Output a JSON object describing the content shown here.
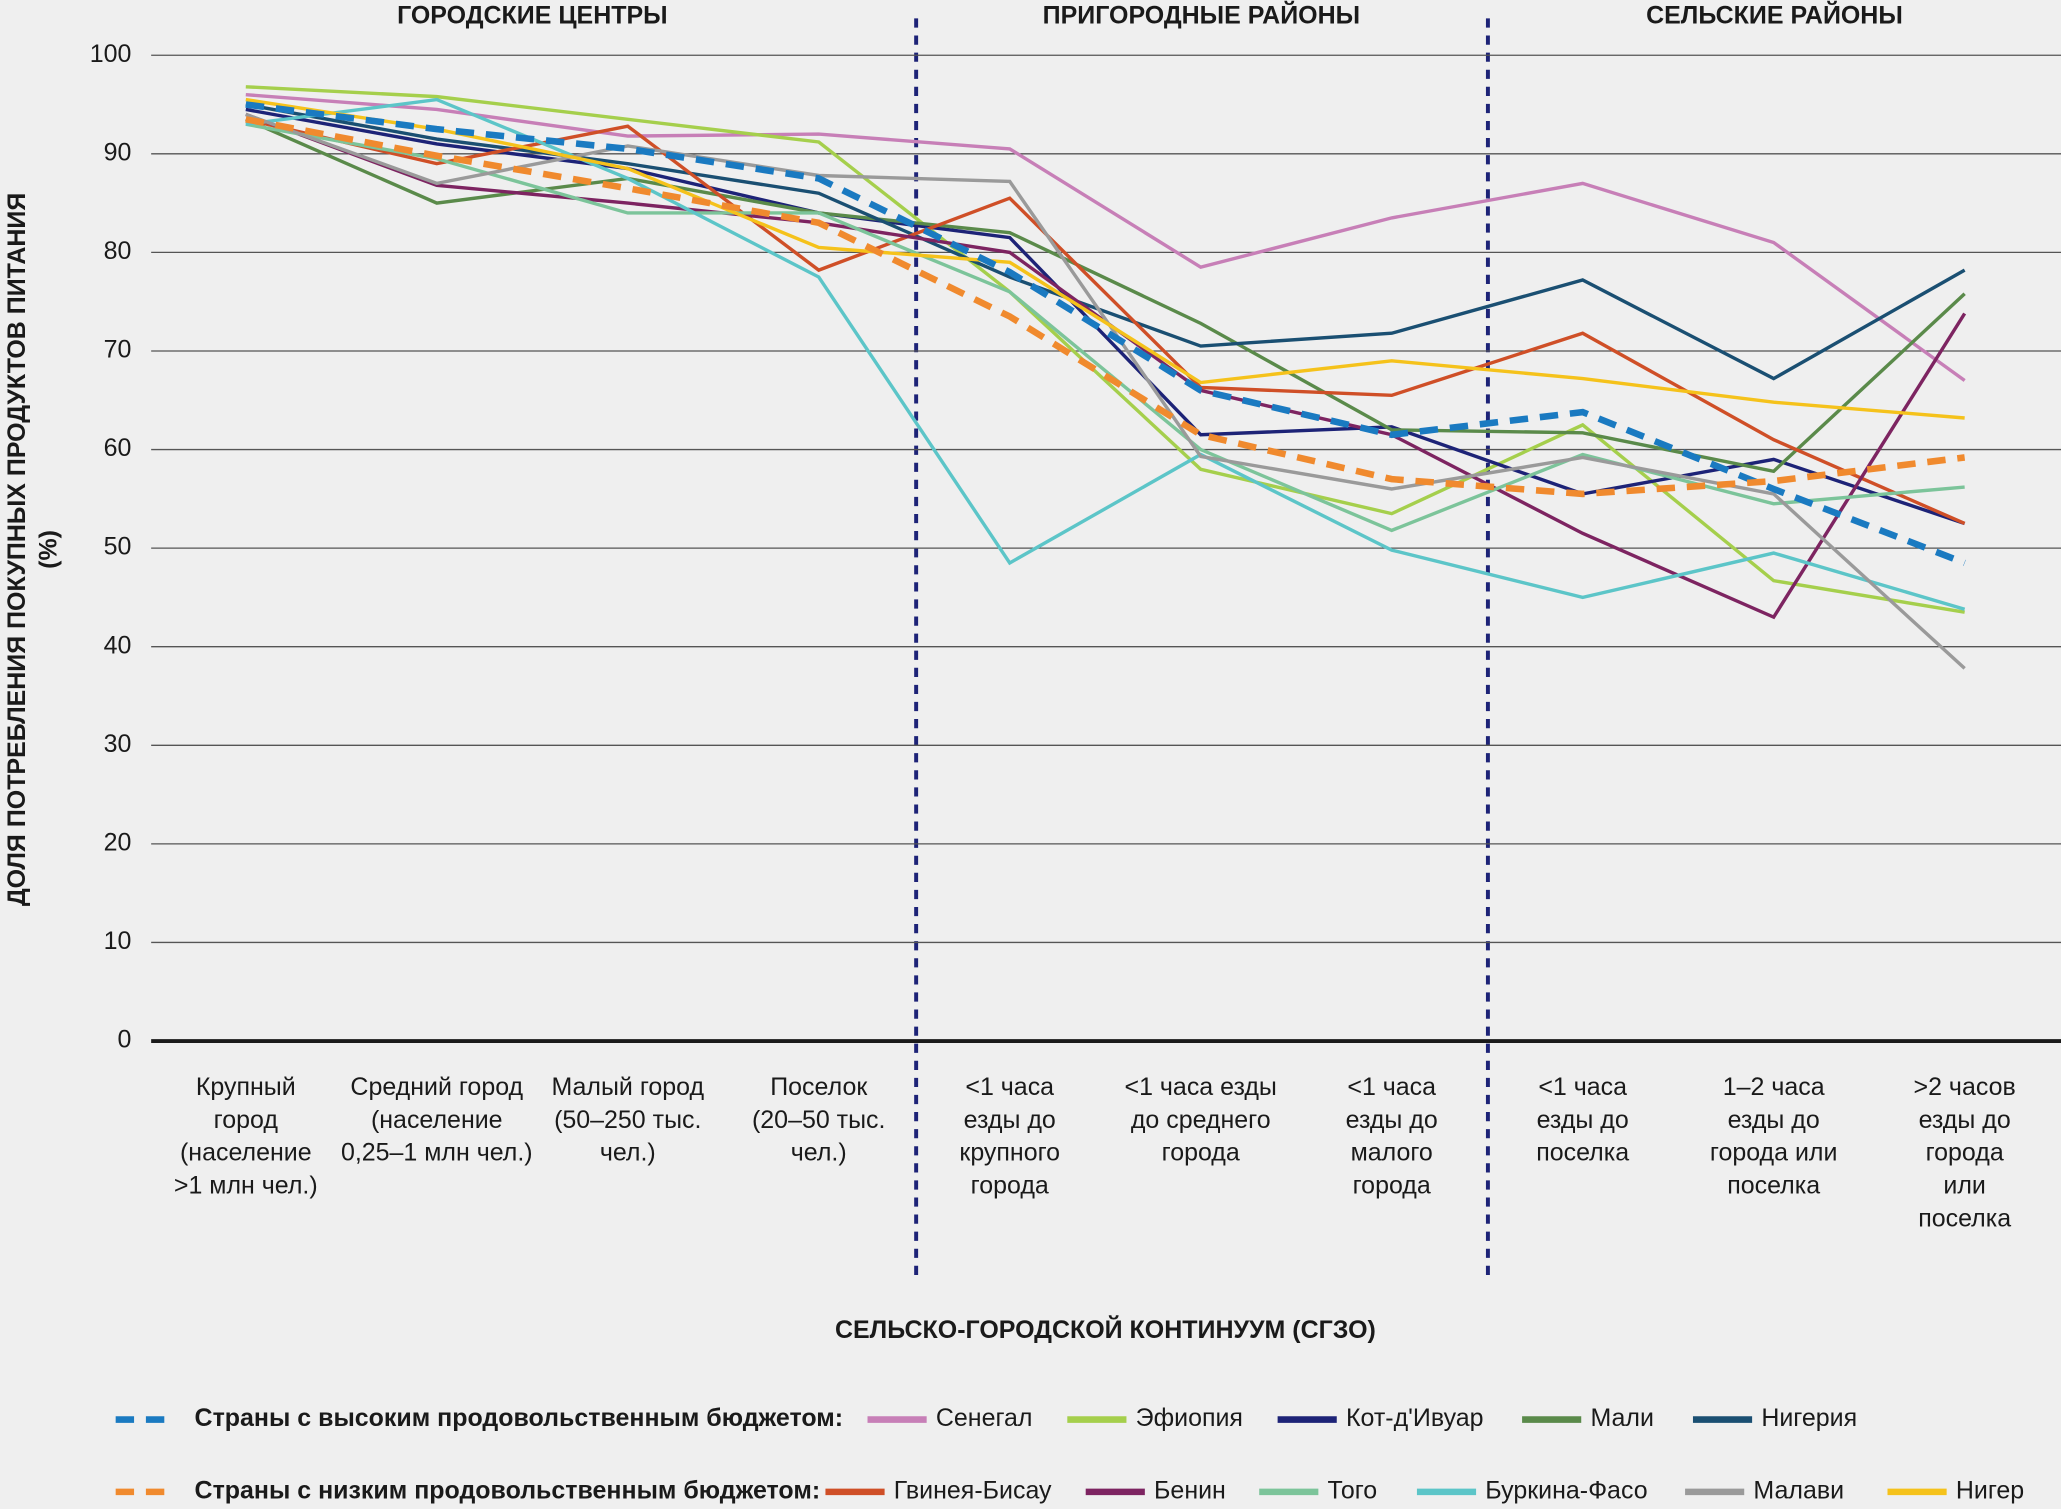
{
  "chart_data": {
    "type": "line",
    "y_label": [
      "ДОЛЯ ПОТРЕБЛЕНИЯ ПОКУПНЫХ ПРОДУКТОВ ПИТАНИЯ",
      "(%)"
    ],
    "x_label": "СЕЛЬСКО-ГОРОДСКОЙ КОНТИНУУМ (СГЗО)",
    "sections": [
      "ГОРОДСКИЕ ЦЕНТРЫ",
      "ПРИГОРОДНЫЕ РАЙОНЫ",
      "СЕЛЬСКИЕ РАЙОНЫ"
    ],
    "categories": [
      [
        "Крупный",
        "город",
        "(население",
        ">1 млн чел.)"
      ],
      [
        "Средний город",
        "(население",
        "0,25–1 млн чел.)"
      ],
      [
        "Малый город",
        "(50–250 тыс.",
        "чел.)"
      ],
      [
        "Поселок",
        "(20–50 тыс.",
        "чел.)"
      ],
      [
        "<1 часа",
        "езды до",
        "крупного",
        "города"
      ],
      [
        "<1 часа езды",
        "до среднего",
        "города"
      ],
      [
        "<1 часа",
        "езды до",
        "малого",
        "города"
      ],
      [
        "<1 часа",
        "езды до",
        "поселка"
      ],
      [
        "1–2 часа",
        "езды до",
        "города или",
        "поселка"
      ],
      [
        ">2 часов",
        "езды до",
        "города",
        "или",
        "поселка"
      ]
    ],
    "ylim": [
      0,
      100
    ],
    "yticks": [
      0,
      10,
      20,
      30,
      40,
      50,
      60,
      70,
      80,
      90,
      100
    ],
    "grid": true,
    "series": [
      {
        "name": "Страны с высоким продовольственным бюджетом:",
        "color": "#1a7ac1",
        "dashed": true,
        "values": [
          95,
          92.5,
          90.5,
          87.5,
          78,
          66,
          61.5,
          63.8,
          56,
          48.5
        ]
      },
      {
        "name": "Сенегал",
        "color": "#c77fb7",
        "values": [
          96,
          94.5,
          91.8,
          92,
          90.5,
          78.5,
          83.5,
          87,
          81,
          67
        ]
      },
      {
        "name": "Эфиопия",
        "color": "#a5cf4c",
        "values": [
          96.8,
          95.8,
          93.5,
          91.2,
          76,
          58,
          53.5,
          62.5,
          46.7,
          43.5
        ]
      },
      {
        "name": "Кот-д'Ивуар",
        "color": "#1d2377",
        "values": [
          94.5,
          91,
          88.5,
          84,
          81.5,
          61.5,
          62.3,
          55.5,
          59,
          52.5
        ]
      },
      {
        "name": "Мали",
        "color": "#5a8a4a",
        "values": [
          93.5,
          85,
          87.5,
          84,
          82,
          72.8,
          62,
          61.7,
          57.8,
          75.8
        ]
      },
      {
        "name": "Нигерия",
        "color": "#1a4f72",
        "values": [
          95,
          91.5,
          89,
          86,
          77.5,
          70.5,
          71.8,
          77.2,
          67.2,
          78.2
        ]
      },
      {
        "name": "Страны с низким продовольственным бюджетом:",
        "color": "#f08a2e",
        "dashed": true,
        "values": [
          93.5,
          89.8,
          86.5,
          83,
          73.5,
          61.5,
          57,
          55.5,
          56.8,
          59.2
        ]
      },
      {
        "name": "Гвинея-Бисау",
        "color": "#cf4f27",
        "values": [
          93.5,
          89,
          92.8,
          78.2,
          85.5,
          66.3,
          65.5,
          71.8,
          61,
          52.5
        ]
      },
      {
        "name": "Бенин",
        "color": "#7d2461",
        "values": [
          94,
          86.8,
          85,
          83,
          80,
          66,
          61.5,
          51.5,
          43,
          73.8
        ]
      },
      {
        "name": "Того",
        "color": "#7cc49a",
        "values": [
          93,
          89.5,
          84,
          84,
          76,
          60,
          51.8,
          59.5,
          54.5,
          56.2
        ]
      },
      {
        "name": "Буркина-Фасо",
        "color": "#5cc5c8",
        "values": [
          93,
          95.5,
          87.5,
          77.5,
          48.5,
          59.5,
          49.8,
          45,
          49.5,
          43.8
        ]
      },
      {
        "name": "Малави",
        "color": "#9a9a9a",
        "values": [
          94,
          87,
          90.8,
          87.8,
          87.2,
          59.3,
          56,
          59.2,
          55.5,
          37.8
        ]
      },
      {
        "name": "Нигер",
        "color": "#f5c21b",
        "values": [
          95.5,
          92.5,
          88.5,
          80.5,
          79,
          66.8,
          69,
          67.2,
          64.8,
          63.2
        ]
      }
    ]
  }
}
